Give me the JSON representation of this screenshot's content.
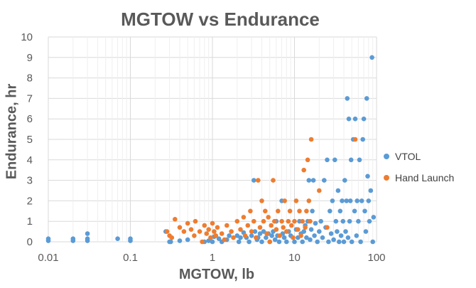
{
  "chart_data": {
    "type": "scatter",
    "title": "MGTOW vs Endurance",
    "xlabel": "MGTOW, lb",
    "ylabel": "Endurance, hr",
    "x_scale": "log",
    "xlim": [
      0.01,
      100
    ],
    "ylim": [
      0,
      10
    ],
    "x_ticks": [
      "0.01",
      "0.1",
      "1",
      "10",
      "100"
    ],
    "y_ticks": [
      "0",
      "1",
      "2",
      "3",
      "4",
      "5",
      "6",
      "7",
      "8",
      "9",
      "10"
    ],
    "grid": true,
    "legend_position": "right",
    "series": [
      {
        "name": "VTOL",
        "color": "#5B9BD5",
        "points": [
          [
            0.01,
            0.05
          ],
          [
            0.01,
            0.15
          ],
          [
            0.02,
            0.05
          ],
          [
            0.02,
            0.15
          ],
          [
            0.03,
            0.05
          ],
          [
            0.03,
            0.4
          ],
          [
            0.03,
            0.15
          ],
          [
            0.07,
            0.15
          ],
          [
            0.1,
            0.05
          ],
          [
            0.1,
            0.15
          ],
          [
            0.27,
            0.5
          ],
          [
            0.3,
            0.0
          ],
          [
            0.31,
            0.0
          ],
          [
            0.4,
            0.05
          ],
          [
            0.5,
            0.1
          ],
          [
            0.8,
            0.0
          ],
          [
            0.9,
            0.05
          ],
          [
            1.0,
            0.0
          ],
          [
            1.05,
            0.25
          ],
          [
            1.2,
            0.15
          ],
          [
            1.3,
            0.0
          ],
          [
            1.5,
            0.1
          ],
          [
            1.6,
            0.3
          ],
          [
            2.0,
            0.3
          ],
          [
            2.1,
            0.0
          ],
          [
            2.2,
            0.2
          ],
          [
            2.4,
            0.45
          ],
          [
            2.6,
            0.2
          ],
          [
            2.8,
            0.0
          ],
          [
            3.0,
            0.3
          ],
          [
            3.2,
            3.0
          ],
          [
            3.3,
            0.5
          ],
          [
            3.5,
            0.1
          ],
          [
            3.6,
            0.2
          ],
          [
            3.8,
            0.4
          ],
          [
            4.0,
            0.0
          ],
          [
            4.2,
            0.5
          ],
          [
            4.5,
            0.2
          ],
          [
            4.8,
            0.4
          ],
          [
            5.0,
            0.0
          ],
          [
            5.3,
            0.3
          ],
          [
            5.5,
            0.5
          ],
          [
            5.8,
            0.1
          ],
          [
            6.0,
            1.0
          ],
          [
            6.2,
            0.3
          ],
          [
            6.5,
            0.0
          ],
          [
            7.0,
            2.0
          ],
          [
            7.2,
            0.4
          ],
          [
            7.5,
            0.2
          ],
          [
            8.0,
            0.0
          ],
          [
            8.5,
            0.5
          ],
          [
            9.0,
            0.3
          ],
          [
            10.0,
            0.0
          ],
          [
            10.5,
            0.6
          ],
          [
            11.0,
            0.2
          ],
          [
            11.5,
            1.0
          ],
          [
            12.0,
            0.4
          ],
          [
            12.5,
            0.0
          ],
          [
            13.0,
            0.5
          ],
          [
            13.5,
            0.8
          ],
          [
            14.0,
            0.2
          ],
          [
            14.5,
            1.0
          ],
          [
            15.0,
            3.0
          ],
          [
            15.5,
            0.1
          ],
          [
            16.0,
            0.6
          ],
          [
            16.5,
            1.5
          ],
          [
            17.0,
            3.0
          ],
          [
            17.5,
            0.3
          ],
          [
            18.0,
            0.9
          ],
          [
            19.0,
            0.0
          ],
          [
            20.0,
            0.5
          ],
          [
            21.0,
            1.0
          ],
          [
            22.0,
            0.2
          ],
          [
            23.0,
            3.0
          ],
          [
            24.0,
            0.7
          ],
          [
            25.0,
            4.0
          ],
          [
            26.0,
            0.0
          ],
          [
            27.0,
            1.5
          ],
          [
            28.0,
            0.4
          ],
          [
            29.0,
            2.0
          ],
          [
            30.0,
            0.1
          ],
          [
            31.0,
            4.0
          ],
          [
            32.0,
            1.0
          ],
          [
            33.0,
            0.5
          ],
          [
            34.0,
            2.5
          ],
          [
            35.0,
            0.0
          ],
          [
            36.0,
            1.5
          ],
          [
            37.0,
            0.3
          ],
          [
            38.0,
            2.0
          ],
          [
            39.0,
            1.0
          ],
          [
            40.0,
            0.0
          ],
          [
            41.0,
            3.0
          ],
          [
            42.0,
            0.5
          ],
          [
            43.0,
            2.0
          ],
          [
            44.0,
            7.0
          ],
          [
            45.0,
            0.2
          ],
          [
            46.0,
            6.0
          ],
          [
            47.0,
            1.0
          ],
          [
            48.0,
            2.0
          ],
          [
            49.0,
            4.0
          ],
          [
            50.0,
            0.0
          ],
          [
            52.0,
            5.0
          ],
          [
            54.0,
            1.5
          ],
          [
            55.0,
            6.0
          ],
          [
            57.0,
            0.3
          ],
          [
            58.0,
            2.0
          ],
          [
            60.0,
            1.0
          ],
          [
            62.0,
            4.0
          ],
          [
            64.0,
            0.0
          ],
          [
            66.0,
            2.0
          ],
          [
            68.0,
            5.0
          ],
          [
            70.0,
            6.0
          ],
          [
            72.0,
            1.5
          ],
          [
            74.0,
            0.5
          ],
          [
            76.0,
            7.0
          ],
          [
            78.0,
            3.2
          ],
          [
            80.0,
            2.0
          ],
          [
            82.0,
            1.0
          ],
          [
            85.0,
            2.5
          ],
          [
            88.0,
            9.0
          ],
          [
            90.0,
            0.0
          ],
          [
            92.0,
            1.2
          ]
        ]
      },
      {
        "name": "Hand Launch",
        "color": "#ED7D31",
        "points": [
          [
            0.28,
            0.5
          ],
          [
            0.3,
            0.3
          ],
          [
            0.32,
            0.2
          ],
          [
            0.35,
            1.1
          ],
          [
            0.4,
            0.7
          ],
          [
            0.45,
            0.5
          ],
          [
            0.5,
            0.9
          ],
          [
            0.55,
            0.6
          ],
          [
            0.6,
            0.3
          ],
          [
            0.62,
            1.0
          ],
          [
            0.7,
            0.5
          ],
          [
            0.75,
            0.0
          ],
          [
            0.8,
            0.8
          ],
          [
            0.85,
            0.4
          ],
          [
            0.9,
            0.6
          ],
          [
            0.95,
            0.2
          ],
          [
            1.0,
            0.9
          ],
          [
            1.05,
            0.5
          ],
          [
            1.1,
            0.3
          ],
          [
            1.15,
            0.7
          ],
          [
            1.3,
            0.4
          ],
          [
            1.4,
            0.1
          ],
          [
            1.5,
            0.8
          ],
          [
            1.7,
            0.5
          ],
          [
            1.8,
            0.2
          ],
          [
            2.0,
            1.0
          ],
          [
            2.2,
            0.6
          ],
          [
            2.4,
            1.2
          ],
          [
            2.5,
            0.3
          ],
          [
            2.7,
            0.8
          ],
          [
            2.9,
            1.5
          ],
          [
            3.0,
            0.5
          ],
          [
            3.2,
            1.0
          ],
          [
            3.4,
            0.2
          ],
          [
            3.6,
            3.0
          ],
          [
            3.8,
            0.7
          ],
          [
            4.0,
            2.0
          ],
          [
            4.2,
            1.0
          ],
          [
            4.4,
            1.5
          ],
          [
            4.6,
            0.4
          ],
          [
            4.8,
            1.2
          ],
          [
            5.0,
            0.0
          ],
          [
            5.2,
            0.8
          ],
          [
            5.5,
            3.0
          ],
          [
            5.7,
            1.0
          ],
          [
            6.0,
            0.6
          ],
          [
            6.3,
            1.5
          ],
          [
            6.6,
            0.3
          ],
          [
            7.0,
            1.0
          ],
          [
            7.3,
            0.7
          ],
          [
            7.6,
            2.0
          ],
          [
            8.0,
            0.5
          ],
          [
            8.4,
            1.0
          ],
          [
            8.8,
            1.5
          ],
          [
            9.2,
            0.8
          ],
          [
            9.6,
            0.2
          ],
          [
            10.0,
            1.0
          ],
          [
            10.5,
            2.0
          ],
          [
            11.0,
            0.6
          ],
          [
            11.5,
            1.5
          ],
          [
            12.0,
            0.3
          ],
          [
            12.5,
            1.0
          ],
          [
            13.0,
            3.5
          ],
          [
            13.5,
            0.7
          ],
          [
            14.0,
            1.5
          ],
          [
            14.5,
            4.0
          ],
          [
            15.0,
            2.0
          ],
          [
            15.5,
            1.0
          ],
          [
            16.0,
            5.0
          ],
          [
            20.0,
            2.5
          ],
          [
            25.0,
            0.7
          ],
          [
            55.0,
            5.0
          ]
        ]
      }
    ]
  }
}
